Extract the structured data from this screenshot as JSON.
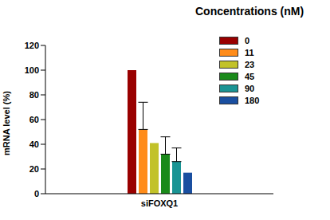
{
  "chart_data": {
    "type": "bar",
    "categories": [
      "siFOXQ1"
    ],
    "y_label": "mRNA level (%)",
    "legend_title": "Concentrations (nM)",
    "legend": "top right",
    "ylim": [
      0,
      120
    ],
    "yticks": [
      0,
      20,
      40,
      60,
      80,
      100,
      120
    ],
    "grid": false,
    "series": [
      {
        "name": "0",
        "color": "#990000",
        "values": [
          100
        ]
      },
      {
        "name": "11",
        "color": "#ff8c1a",
        "values": [
          52
        ],
        "error": [
          22
        ]
      },
      {
        "name": "23",
        "color": "#c2c229",
        "values": [
          41
        ]
      },
      {
        "name": "45",
        "color": "#1a8a1a",
        "values": [
          32
        ],
        "error": [
          14
        ]
      },
      {
        "name": "90",
        "color": "#1a9494",
        "values": [
          26
        ],
        "error": [
          11
        ]
      },
      {
        "name": "180",
        "color": "#1a4fa0",
        "values": [
          17
        ]
      }
    ]
  }
}
